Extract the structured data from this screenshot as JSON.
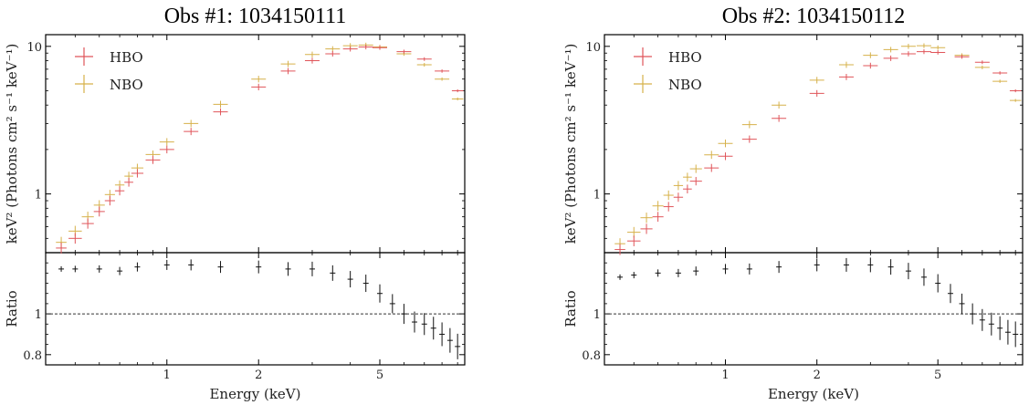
{
  "colors": {
    "hbo": "#e0555a",
    "nbo": "#d6b14a",
    "ratio": "#111111",
    "axis": "#000000"
  },
  "chart_data": [
    {
      "type": "scatter",
      "title": "Obs #1: 1034150111",
      "xlabel": "Energy (keV)",
      "ylabel_top": "keV² (Photons cm² s⁻¹ keV⁻¹)",
      "ylabel_bottom": "Ratio",
      "xscale": "log",
      "xlim": [
        0.4,
        9.5
      ],
      "xticks": [
        1,
        2,
        5
      ],
      "xtick_labels": [
        "1",
        "2",
        "5"
      ],
      "top": {
        "yscale": "log",
        "ylim": [
          0.4,
          12
        ],
        "yticks": [
          1,
          10
        ],
        "ytick_labels": [
          "1",
          "10"
        ]
      },
      "bottom": {
        "ylim": [
          0.75,
          1.3
        ],
        "yticks": [
          0.8,
          1
        ],
        "ytick_labels": [
          "0.8",
          "1"
        ],
        "reference_line": 1
      },
      "legend": {
        "position": "top-left",
        "entries": [
          "HBO",
          "NBO"
        ]
      },
      "series_points": {
        "energy": [
          0.45,
          0.5,
          0.55,
          0.6,
          0.65,
          0.7,
          0.75,
          0.8,
          0.9,
          1.0,
          1.2,
          1.5,
          2.0,
          2.5,
          3.0,
          3.5,
          4.0,
          4.5,
          5.0,
          6.0,
          7.0,
          8.0,
          9.0
        ],
        "HBO": [
          0.43,
          0.5,
          0.63,
          0.76,
          0.9,
          1.05,
          1.2,
          1.38,
          1.7,
          2.0,
          2.65,
          3.6,
          5.3,
          6.8,
          8.0,
          8.9,
          9.6,
          9.9,
          9.8,
          9.2,
          8.2,
          6.8,
          5.0
        ],
        "NBO": [
          0.47,
          0.56,
          0.7,
          0.84,
          0.99,
          1.15,
          1.32,
          1.5,
          1.85,
          2.25,
          3.0,
          4.05,
          6.0,
          7.6,
          8.8,
          9.6,
          10.1,
          10.2,
          9.9,
          8.9,
          7.5,
          6.0,
          4.4
        ]
      },
      "ratio": {
        "energy": [
          0.45,
          0.5,
          0.6,
          0.7,
          0.8,
          1.0,
          1.2,
          1.5,
          2.0,
          2.5,
          3.0,
          3.5,
          4.0,
          4.5,
          5.0,
          5.5,
          6.0,
          6.5,
          7.0,
          7.5,
          8.0,
          8.5,
          9.0
        ],
        "values": [
          1.22,
          1.22,
          1.22,
          1.21,
          1.23,
          1.24,
          1.24,
          1.23,
          1.23,
          1.22,
          1.22,
          1.2,
          1.17,
          1.15,
          1.1,
          1.05,
          1.0,
          0.96,
          0.95,
          0.93,
          0.9,
          0.87,
          0.84
        ]
      }
    },
    {
      "type": "scatter",
      "title": "Obs #2: 1034150112",
      "xlabel": "Energy (keV)",
      "ylabel_top": "keV² (Photons cm² s⁻¹ keV⁻¹)",
      "ylabel_bottom": "Ratio",
      "xscale": "log",
      "xlim": [
        0.4,
        9.5
      ],
      "xticks": [
        1,
        2,
        5
      ],
      "xtick_labels": [
        "1",
        "2",
        "5"
      ],
      "top": {
        "yscale": "log",
        "ylim": [
          0.4,
          12
        ],
        "yticks": [
          1,
          10
        ],
        "ytick_labels": [
          "1",
          "10"
        ]
      },
      "bottom": {
        "ylim": [
          0.75,
          1.3
        ],
        "yticks": [
          0.8,
          1
        ],
        "ytick_labels": [
          "0.8",
          "1"
        ],
        "reference_line": 1
      },
      "legend": {
        "position": "top-left",
        "entries": [
          "HBO",
          "NBO"
        ]
      },
      "series_points": {
        "energy": [
          0.45,
          0.5,
          0.55,
          0.6,
          0.65,
          0.7,
          0.75,
          0.8,
          0.9,
          1.0,
          1.2,
          1.5,
          2.0,
          2.5,
          3.0,
          3.5,
          4.0,
          4.5,
          5.0,
          6.0,
          7.0,
          8.0,
          9.0
        ],
        "HBO": [
          0.42,
          0.48,
          0.58,
          0.7,
          0.82,
          0.95,
          1.08,
          1.22,
          1.5,
          1.8,
          2.35,
          3.25,
          4.8,
          6.2,
          7.4,
          8.3,
          8.9,
          9.2,
          9.1,
          8.5,
          7.8,
          6.6,
          5.0
        ],
        "NBO": [
          0.46,
          0.55,
          0.69,
          0.83,
          0.98,
          1.14,
          1.3,
          1.48,
          1.84,
          2.2,
          2.95,
          4.0,
          5.9,
          7.5,
          8.7,
          9.5,
          10.0,
          10.1,
          9.8,
          8.7,
          7.2,
          5.8,
          4.3
        ]
      },
      "ratio": {
        "energy": [
          0.45,
          0.5,
          0.6,
          0.7,
          0.8,
          1.0,
          1.2,
          1.5,
          2.0,
          2.5,
          3.0,
          3.5,
          4.0,
          4.5,
          5.0,
          5.5,
          6.0,
          6.5,
          7.0,
          7.5,
          8.0,
          8.5,
          9.0
        ],
        "values": [
          1.18,
          1.19,
          1.2,
          1.2,
          1.21,
          1.22,
          1.22,
          1.23,
          1.24,
          1.24,
          1.24,
          1.23,
          1.21,
          1.18,
          1.15,
          1.1,
          1.05,
          1.0,
          0.97,
          0.95,
          0.93,
          0.91,
          0.9
        ]
      }
    }
  ]
}
